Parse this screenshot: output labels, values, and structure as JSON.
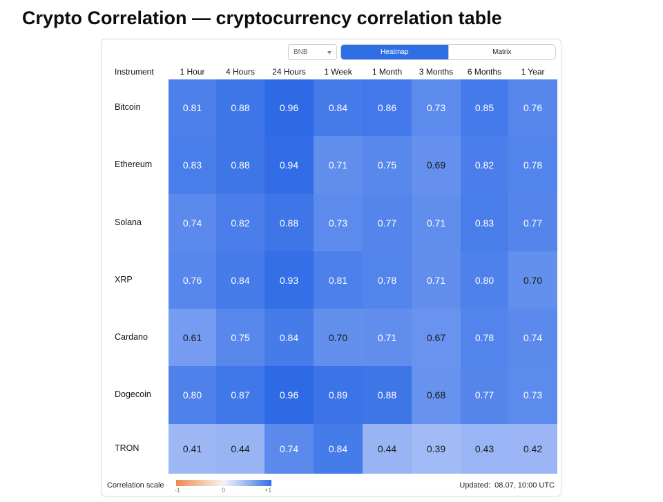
{
  "page": {
    "title": "Crypto Correlation — cryptocurrency correlation table"
  },
  "toolbar": {
    "selected_instrument": "BNB",
    "view_options": [
      "Heatmap",
      "Matrix"
    ],
    "active_view": "Heatmap"
  },
  "table": {
    "instrument_header": "Instrument",
    "columns": [
      "1 Hour",
      "4 Hours",
      "24 Hours",
      "1 Week",
      "1 Month",
      "3 Months",
      "6 Months",
      "1 Year"
    ],
    "rows": [
      {
        "name": "Bitcoin",
        "values": [
          "0.81",
          "0.88",
          "0.96",
          "0.84",
          "0.86",
          "0.73",
          "0.85",
          "0.76"
        ]
      },
      {
        "name": "Ethereum",
        "values": [
          "0.83",
          "0.88",
          "0.94",
          "0.71",
          "0.75",
          "0.69",
          "0.82",
          "0.78"
        ]
      },
      {
        "name": "Solana",
        "values": [
          "0.74",
          "0.82",
          "0.88",
          "0.73",
          "0.77",
          "0.71",
          "0.83",
          "0.77"
        ]
      },
      {
        "name": "XRP",
        "values": [
          "0.76",
          "0.84",
          "0.93",
          "0.81",
          "0.78",
          "0.71",
          "0.80",
          "0.70"
        ]
      },
      {
        "name": "Cardano",
        "values": [
          "0.61",
          "0.75",
          "0.84",
          "0.70",
          "0.71",
          "0.67",
          "0.78",
          "0.74"
        ]
      },
      {
        "name": "Dogecoin",
        "values": [
          "0.80",
          "0.87",
          "0.96",
          "0.89",
          "0.88",
          "0.68",
          "0.77",
          "0.73"
        ]
      },
      {
        "name": "TRON",
        "values": [
          "0.41",
          "0.44",
          "0.74",
          "0.84",
          "0.44",
          "0.39",
          "0.43",
          "0.42"
        ]
      }
    ]
  },
  "legend": {
    "label": "Correlation scale",
    "min_label": "-1",
    "mid_label": "0",
    "max_label": "+1",
    "negative_color": "#e98c52",
    "neutral_color": "#f2f2f4",
    "positive_color": "#2f6fe6"
  },
  "footer": {
    "updated_label": "Updated:",
    "updated_value": "08.07, 10:00 UTC"
  }
}
